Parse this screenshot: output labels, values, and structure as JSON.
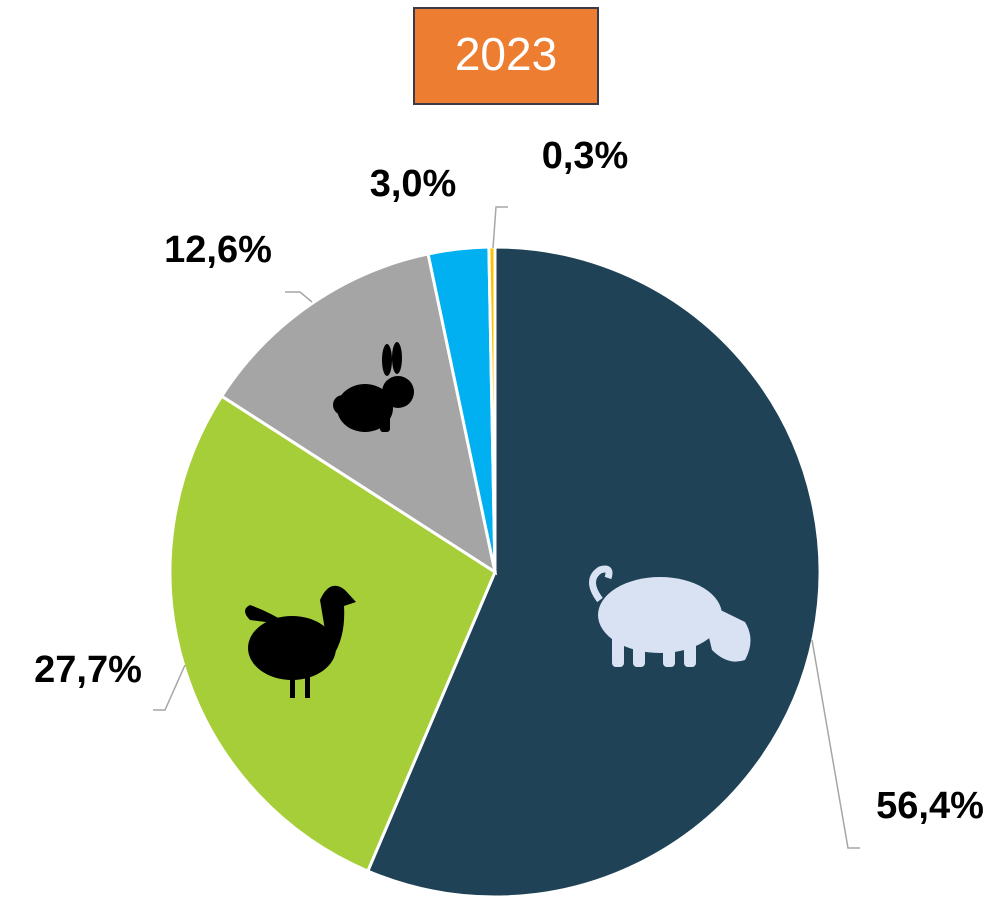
{
  "chart_data": {
    "type": "pie",
    "title": "2023",
    "values": [
      56.4,
      27.7,
      12.6,
      3.0,
      0.3
    ],
    "value_labels": [
      "56,4%",
      "27,7%",
      "12,6%",
      "3,0%",
      "0,3%"
    ],
    "colors": [
      "#1f4257",
      "#a6ce39",
      "#a5a5a5",
      "#00b0f0",
      "#ffc000"
    ]
  }
}
